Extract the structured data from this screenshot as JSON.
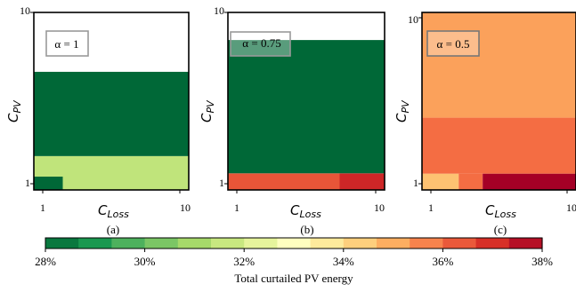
{
  "chart_data": [
    {
      "type": "heatmap",
      "caption": "(a)",
      "annotation": "α = 1",
      "xlabel_main": "C",
      "xlabel_sub": "Loss",
      "ylabel_main": "C",
      "ylabel_sub": "PV",
      "xlim": [
        1,
        10
      ],
      "ylim": [
        1,
        10
      ],
      "x_ticks": [
        "1",
        "10"
      ],
      "y_ticks": [
        "1",
        "10"
      ],
      "cells": [
        {
          "x": [
            1,
            10
          ],
          "y": [
            1.0,
            1.45
          ],
          "value": 31.5
        },
        {
          "x": [
            1,
            1.4
          ],
          "y": [
            1.0,
            1.1
          ],
          "value": 28.0
        },
        {
          "x": [
            1,
            10
          ],
          "y": [
            1.45,
            4.5
          ],
          "value": 28.0
        }
      ]
    },
    {
      "type": "heatmap",
      "caption": "(b)",
      "annotation": "α = 0.75",
      "xlabel_main": "C",
      "xlabel_sub": "Loss",
      "ylabel_main": "C",
      "ylabel_sub": "PV",
      "xlim": [
        1,
        10
      ],
      "ylim": [
        1,
        10
      ],
      "x_ticks": [
        "1",
        "10"
      ],
      "y_ticks": [
        "1",
        "10"
      ],
      "cells": [
        {
          "x": [
            1,
            5.5
          ],
          "y": [
            1.0,
            1.15
          ],
          "value": 36.4
        },
        {
          "x": [
            5.5,
            10
          ],
          "y": [
            1.0,
            1.15
          ],
          "value": 37.2
        },
        {
          "x": [
            1,
            10
          ],
          "y": [
            1.15,
            6.9
          ],
          "value": 28.0
        }
      ]
    },
    {
      "type": "heatmap",
      "caption": "(c)",
      "annotation": "α = 0.5",
      "xlabel_main": "C",
      "xlabel_sub": "Loss",
      "ylabel_main": "C",
      "ylabel_sub": "PV",
      "xlim": [
        1,
        10
      ],
      "ylim": [
        1,
        10
      ],
      "x_ticks": [
        "1",
        "10"
      ],
      "y_ticks": [
        "1",
        "10"
      ],
      "cells": [
        {
          "x": [
            1,
            1.6
          ],
          "y": [
            1.0,
            1.15
          ],
          "value": 34.6
        },
        {
          "x": [
            1.6,
            2.4
          ],
          "y": [
            1.0,
            1.15
          ],
          "value": 36.0
        },
        {
          "x": [
            2.4,
            10
          ],
          "y": [
            1.0,
            1.15
          ],
          "value": 38.0
        },
        {
          "x": [
            1,
            10
          ],
          "y": [
            1.15,
            2.5
          ],
          "value": 36.0
        },
        {
          "x": [
            1,
            10
          ],
          "y": [
            2.5,
            10
          ],
          "value": 35.2
        }
      ]
    }
  ],
  "colorbar": {
    "label": "Total curtailed PV energy",
    "range": [
      28,
      38
    ],
    "ticks": [
      "28%",
      "30%",
      "32%",
      "34%",
      "36%",
      "38%"
    ],
    "levels": 15,
    "colors": [
      "#006837",
      "#1a9850",
      "#66bd63",
      "#a6d96a",
      "#d9ef8b",
      "#ffffbf",
      "#fee08b",
      "#fdae61",
      "#f46d43",
      "#d73027",
      "#a50026"
    ]
  }
}
